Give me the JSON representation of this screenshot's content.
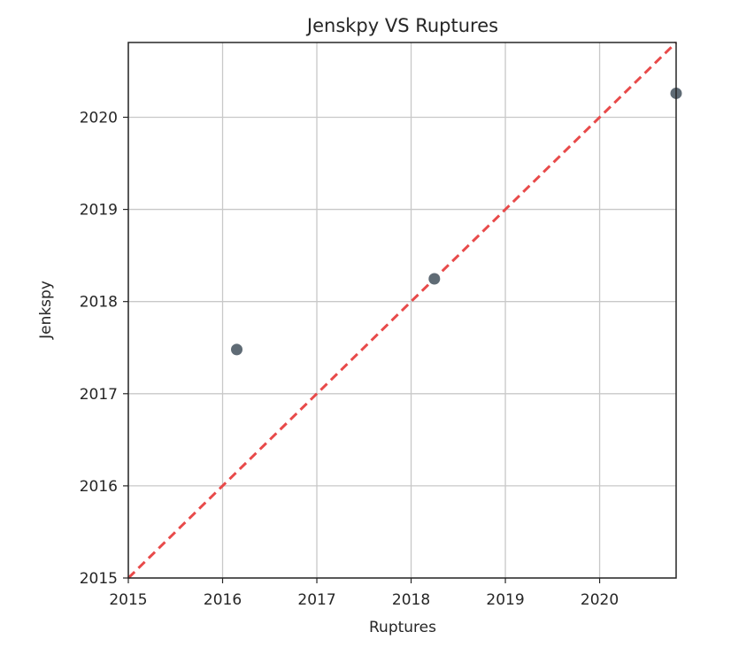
{
  "chart_data": {
    "type": "scatter",
    "title": "Jenskpy VS Ruptures",
    "xlabel": "Ruptures",
    "ylabel": "Jenkspy",
    "xlim": [
      "2015-01-01",
      "2020-10-24"
    ],
    "ylim": [
      "2015-01-01",
      "2020-10-24"
    ],
    "x_ticks": [
      "2015",
      "2016",
      "2017",
      "2018",
      "2019",
      "2020"
    ],
    "y_ticks": [
      "2015",
      "2016",
      "2017",
      "2018",
      "2019",
      "2020"
    ],
    "grid": true,
    "series": [
      {
        "x": [
          "2016-02-25",
          "2018-04-01",
          "2020-10-24"
        ],
        "y": [
          "2017-06-25",
          "2018-04-01",
          "2020-04-05"
        ],
        "color": "#5f6b75"
      }
    ],
    "reference_line": {
      "type": "identity",
      "style": "dashed",
      "color": "#e84a4a"
    }
  }
}
